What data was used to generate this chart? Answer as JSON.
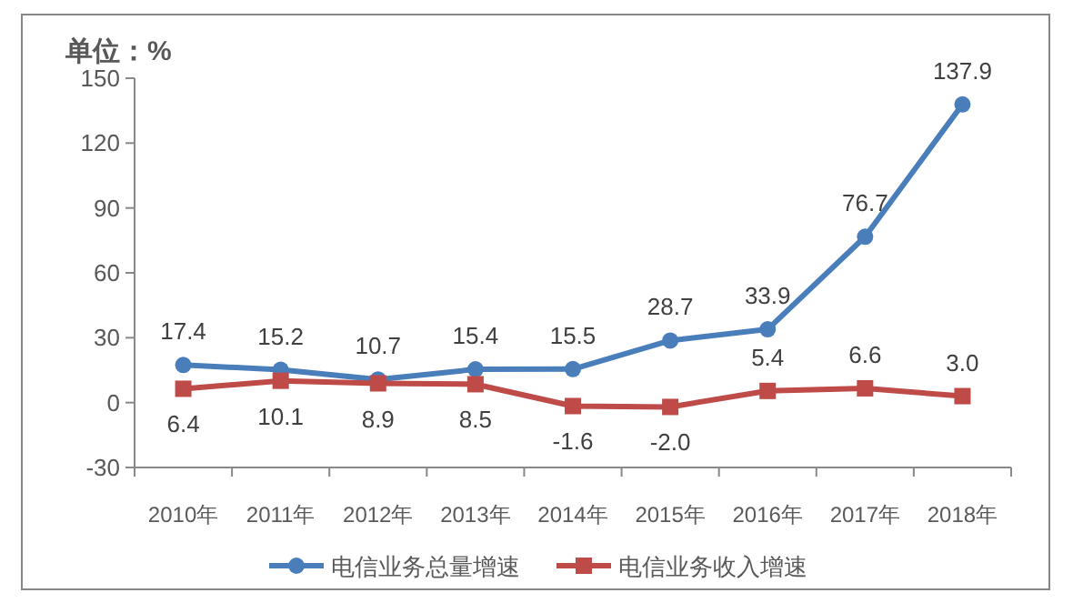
{
  "chart_data": {
    "type": "line",
    "ylabel": "单位：%",
    "categories": [
      "2010年",
      "2011年",
      "2012年",
      "2013年",
      "2014年",
      "2015年",
      "2016年",
      "2017年",
      "2018年"
    ],
    "series": [
      {
        "name": "电信业务总量增速",
        "color": "#4a7ebb",
        "marker": "circle",
        "values": [
          17.4,
          15.2,
          10.7,
          15.4,
          15.5,
          28.7,
          33.9,
          76.7,
          137.9
        ],
        "value_labels": [
          "17.4",
          "15.2",
          "10.7",
          "15.4",
          "15.5",
          "28.7",
          "33.9",
          "76.7",
          "137.9"
        ]
      },
      {
        "name": "电信业务收入增速",
        "color": "#be4b48",
        "marker": "square",
        "values": [
          6.4,
          10.1,
          8.9,
          8.5,
          -1.6,
          -2.0,
          5.4,
          6.6,
          3.0
        ],
        "value_labels": [
          "6.4",
          "10.1",
          "8.9",
          "8.5",
          "-1.6",
          "-2.0",
          "5.4",
          "6.6",
          "3.0"
        ]
      }
    ],
    "ylim": [
      -30,
      150
    ],
    "yticks": [
      -30,
      0,
      30,
      60,
      90,
      120,
      150
    ],
    "grid": false,
    "legend": "bottom",
    "line_style": "solid"
  }
}
